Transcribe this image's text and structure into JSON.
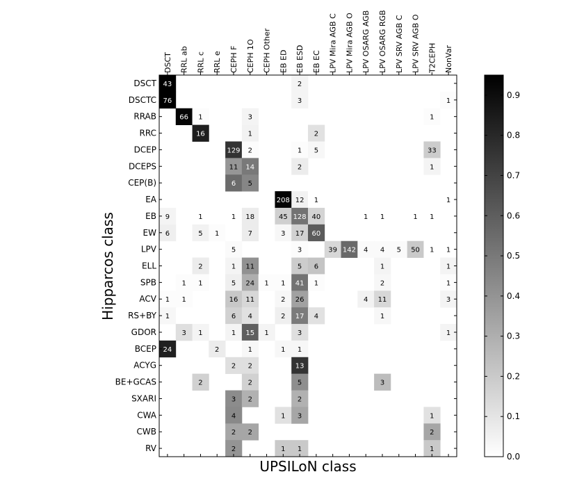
{
  "chart_data": {
    "type": "heatmap",
    "title": "",
    "xlabel": "UPSILoN class",
    "ylabel": "Hipparcos class",
    "x_categories": [
      "DSCT",
      "RRL ab",
      "RRL c",
      "RRL e",
      "CEPH F",
      "CEPH 1O",
      "CEPH Other",
      "EB ED",
      "EB ESD",
      "EB EC",
      "LPV Mira AGB C",
      "LPV Mira AGB O",
      "LPV OSARG AGB",
      "LPV OSARG RGB",
      "LPV SRV AGB C",
      "LPV SRV AGB O",
      "T2CEPH",
      "NonVar"
    ],
    "y_categories": [
      "DSCT",
      "DSCTC",
      "RRAB",
      "RRC",
      "DCEP",
      "DCEPS",
      "CEP(B)",
      "EA",
      "EB",
      "EW",
      "LPV",
      "ELL",
      "SPB",
      "ACV",
      "RS+BY",
      "GDOR",
      "BCEP",
      "ACYG",
      "BE+GCAS",
      "SXARI",
      "CWA",
      "CWB",
      "RV"
    ],
    "colorbar": {
      "range": [
        0.0,
        0.95
      ],
      "ticks": [
        "0.0",
        "0.1",
        "0.2",
        "0.3",
        "0.4",
        "0.5",
        "0.6",
        "0.7",
        "0.8",
        "0.9"
      ],
      "colormap": "gray_r"
    },
    "cells": [
      {
        "row": "DSCT",
        "col": "DSCT",
        "count": 43,
        "fraction": 0.96
      },
      {
        "row": "DSCT",
        "col": "EB ESD",
        "count": 2,
        "fraction": 0.04
      },
      {
        "row": "DSCTC",
        "col": "DSCT",
        "count": 76,
        "fraction": 0.95
      },
      {
        "row": "DSCTC",
        "col": "EB ESD",
        "count": 3,
        "fraction": 0.04
      },
      {
        "row": "DSCTC",
        "col": "NonVar",
        "count": 1,
        "fraction": 0.01
      },
      {
        "row": "RRAB",
        "col": "RRL ab",
        "count": 66,
        "fraction": 0.93
      },
      {
        "row": "RRAB",
        "col": "RRL c",
        "count": 1,
        "fraction": 0.01
      },
      {
        "row": "RRAB",
        "col": "CEPH 1O",
        "count": 3,
        "fraction": 0.04
      },
      {
        "row": "RRAB",
        "col": "T2CEPH",
        "count": 1,
        "fraction": 0.01
      },
      {
        "row": "RRC",
        "col": "RRL c",
        "count": 16,
        "fraction": 0.84
      },
      {
        "row": "RRC",
        "col": "CEPH 1O",
        "count": 1,
        "fraction": 0.05
      },
      {
        "row": "RRC",
        "col": "EB EC",
        "count": 2,
        "fraction": 0.11
      },
      {
        "row": "DCEP",
        "col": "CEPH F",
        "count": 129,
        "fraction": 0.76
      },
      {
        "row": "DCEP",
        "col": "CEPH 1O",
        "count": 2,
        "fraction": 0.01
      },
      {
        "row": "DCEP",
        "col": "EB ESD",
        "count": 1,
        "fraction": 0.01
      },
      {
        "row": "DCEP",
        "col": "EB EC",
        "count": 5,
        "fraction": 0.03
      },
      {
        "row": "DCEP",
        "col": "T2CEPH",
        "count": 33,
        "fraction": 0.19
      },
      {
        "row": "DCEPS",
        "col": "CEPH F",
        "count": 11,
        "fraction": 0.39
      },
      {
        "row": "DCEPS",
        "col": "CEPH 1O",
        "count": 14,
        "fraction": 0.5
      },
      {
        "row": "DCEPS",
        "col": "EB ESD",
        "count": 2,
        "fraction": 0.07
      },
      {
        "row": "DCEPS",
        "col": "T2CEPH",
        "count": 1,
        "fraction": 0.04
      },
      {
        "row": "CEP(B)",
        "col": "CEPH F",
        "count": 6,
        "fraction": 0.55
      },
      {
        "row": "CEP(B)",
        "col": "CEPH 1O",
        "count": 5,
        "fraction": 0.45
      },
      {
        "row": "EA",
        "col": "EB ED",
        "count": 208,
        "fraction": 0.94
      },
      {
        "row": "EA",
        "col": "EB ESD",
        "count": 12,
        "fraction": 0.05
      },
      {
        "row": "EA",
        "col": "EB EC",
        "count": 1,
        "fraction": 0.0
      },
      {
        "row": "EA",
        "col": "NonVar",
        "count": 1,
        "fraction": 0.0
      },
      {
        "row": "EB",
        "col": "DSCT",
        "count": 9,
        "fraction": 0.04
      },
      {
        "row": "EB",
        "col": "RRL c",
        "count": 1,
        "fraction": 0.0
      },
      {
        "row": "EB",
        "col": "CEPH F",
        "count": 1,
        "fraction": 0.0
      },
      {
        "row": "EB",
        "col": "CEPH 1O",
        "count": 18,
        "fraction": 0.07
      },
      {
        "row": "EB",
        "col": "EB ED",
        "count": 45,
        "fraction": 0.18
      },
      {
        "row": "EB",
        "col": "EB ESD",
        "count": 128,
        "fraction": 0.52
      },
      {
        "row": "EB",
        "col": "EB EC",
        "count": 40,
        "fraction": 0.16
      },
      {
        "row": "EB",
        "col": "LPV OSARG AGB",
        "count": 1,
        "fraction": 0.0
      },
      {
        "row": "EB",
        "col": "LPV OSARG RGB",
        "count": 1,
        "fraction": 0.0
      },
      {
        "row": "EB",
        "col": "LPV SRV AGB O",
        "count": 1,
        "fraction": 0.0
      },
      {
        "row": "EB",
        "col": "T2CEPH",
        "count": 1,
        "fraction": 0.0
      },
      {
        "row": "EW",
        "col": "DSCT",
        "count": 6,
        "fraction": 0.06
      },
      {
        "row": "EW",
        "col": "RRL c",
        "count": 5,
        "fraction": 0.05
      },
      {
        "row": "EW",
        "col": "RRL e",
        "count": 1,
        "fraction": 0.01
      },
      {
        "row": "EW",
        "col": "CEPH 1O",
        "count": 7,
        "fraction": 0.07
      },
      {
        "row": "EW",
        "col": "EB ED",
        "count": 3,
        "fraction": 0.03
      },
      {
        "row": "EW",
        "col": "EB ESD",
        "count": 17,
        "fraction": 0.17
      },
      {
        "row": "EW",
        "col": "EB EC",
        "count": 60,
        "fraction": 0.61
      },
      {
        "row": "LPV",
        "col": "CEPH F",
        "count": 5,
        "fraction": 0.02
      },
      {
        "row": "LPV",
        "col": "EB ESD",
        "count": 3,
        "fraction": 0.01
      },
      {
        "row": "LPV",
        "col": "LPV Mira AGB C",
        "count": 39,
        "fraction": 0.15
      },
      {
        "row": "LPV",
        "col": "LPV Mira AGB O",
        "count": 142,
        "fraction": 0.56
      },
      {
        "row": "LPV",
        "col": "LPV OSARG AGB",
        "count": 4,
        "fraction": 0.02
      },
      {
        "row": "LPV",
        "col": "LPV OSARG RGB",
        "count": 4,
        "fraction": 0.02
      },
      {
        "row": "LPV",
        "col": "LPV SRV AGB C",
        "count": 5,
        "fraction": 0.02
      },
      {
        "row": "LPV",
        "col": "LPV SRV AGB O",
        "count": 50,
        "fraction": 0.2
      },
      {
        "row": "LPV",
        "col": "T2CEPH",
        "count": 1,
        "fraction": 0.0
      },
      {
        "row": "LPV",
        "col": "NonVar",
        "count": 1,
        "fraction": 0.0
      },
      {
        "row": "ELL",
        "col": "RRL c",
        "count": 2,
        "fraction": 0.07
      },
      {
        "row": "ELL",
        "col": "CEPH F",
        "count": 1,
        "fraction": 0.04
      },
      {
        "row": "ELL",
        "col": "CEPH 1O",
        "count": 11,
        "fraction": 0.41
      },
      {
        "row": "ELL",
        "col": "EB ESD",
        "count": 5,
        "fraction": 0.19
      },
      {
        "row": "ELL",
        "col": "EB EC",
        "count": 6,
        "fraction": 0.22
      },
      {
        "row": "ELL",
        "col": "LPV OSARG RGB",
        "count": 1,
        "fraction": 0.04
      },
      {
        "row": "ELL",
        "col": "NonVar",
        "count": 1,
        "fraction": 0.04
      },
      {
        "row": "SPB",
        "col": "RRL ab",
        "count": 1,
        "fraction": 0.01
      },
      {
        "row": "SPB",
        "col": "RRL c",
        "count": 1,
        "fraction": 0.01
      },
      {
        "row": "SPB",
        "col": "CEPH F",
        "count": 5,
        "fraction": 0.06
      },
      {
        "row": "SPB",
        "col": "CEPH 1O",
        "count": 24,
        "fraction": 0.3
      },
      {
        "row": "SPB",
        "col": "CEPH Other",
        "count": 1,
        "fraction": 0.01
      },
      {
        "row": "SPB",
        "col": "EB ED",
        "count": 1,
        "fraction": 0.01
      },
      {
        "row": "SPB",
        "col": "EB ESD",
        "count": 41,
        "fraction": 0.52
      },
      {
        "row": "SPB",
        "col": "EB EC",
        "count": 1,
        "fraction": 0.01
      },
      {
        "row": "SPB",
        "col": "LPV OSARG RGB",
        "count": 2,
        "fraction": 0.03
      },
      {
        "row": "SPB",
        "col": "NonVar",
        "count": 1,
        "fraction": 0.01
      },
      {
        "row": "ACV",
        "col": "DSCT",
        "count": 1,
        "fraction": 0.01
      },
      {
        "row": "ACV",
        "col": "RRL ab",
        "count": 1,
        "fraction": 0.01
      },
      {
        "row": "ACV",
        "col": "CEPH F",
        "count": 16,
        "fraction": 0.21
      },
      {
        "row": "ACV",
        "col": "CEPH 1O",
        "count": 11,
        "fraction": 0.15
      },
      {
        "row": "ACV",
        "col": "EB ED",
        "count": 2,
        "fraction": 0.03
      },
      {
        "row": "ACV",
        "col": "EB ESD",
        "count": 26,
        "fraction": 0.35
      },
      {
        "row": "ACV",
        "col": "LPV OSARG AGB",
        "count": 4,
        "fraction": 0.05
      },
      {
        "row": "ACV",
        "col": "LPV OSARG RGB",
        "count": 11,
        "fraction": 0.15
      },
      {
        "row": "ACV",
        "col": "NonVar",
        "count": 3,
        "fraction": 0.04
      },
      {
        "row": "RS+BY",
        "col": "DSCT",
        "count": 1,
        "fraction": 0.03
      },
      {
        "row": "RS+BY",
        "col": "CEPH F",
        "count": 6,
        "fraction": 0.17
      },
      {
        "row": "RS+BY",
        "col": "CEPH 1O",
        "count": 4,
        "fraction": 0.11
      },
      {
        "row": "RS+BY",
        "col": "EB ED",
        "count": 2,
        "fraction": 0.06
      },
      {
        "row": "RS+BY",
        "col": "EB ESD",
        "count": 17,
        "fraction": 0.49
      },
      {
        "row": "RS+BY",
        "col": "EB EC",
        "count": 4,
        "fraction": 0.11
      },
      {
        "row": "RS+BY",
        "col": "LPV OSARG RGB",
        "count": 1,
        "fraction": 0.03
      },
      {
        "row": "GDOR",
        "col": "RRL ab",
        "count": 3,
        "fraction": 0.12
      },
      {
        "row": "GDOR",
        "col": "RRL c",
        "count": 1,
        "fraction": 0.04
      },
      {
        "row": "GDOR",
        "col": "CEPH F",
        "count": 1,
        "fraction": 0.04
      },
      {
        "row": "GDOR",
        "col": "CEPH 1O",
        "count": 15,
        "fraction": 0.6
      },
      {
        "row": "GDOR",
        "col": "CEPH Other",
        "count": 1,
        "fraction": 0.04
      },
      {
        "row": "GDOR",
        "col": "EB ESD",
        "count": 3,
        "fraction": 0.12
      },
      {
        "row": "GDOR",
        "col": "NonVar",
        "count": 1,
        "fraction": 0.04
      },
      {
        "row": "BCEP",
        "col": "DSCT",
        "count": 24,
        "fraction": 0.83
      },
      {
        "row": "BCEP",
        "col": "RRL e",
        "count": 2,
        "fraction": 0.07
      },
      {
        "row": "BCEP",
        "col": "CEPH 1O",
        "count": 1,
        "fraction": 0.03
      },
      {
        "row": "BCEP",
        "col": "EB ED",
        "count": 1,
        "fraction": 0.03
      },
      {
        "row": "BCEP",
        "col": "EB ESD",
        "count": 1,
        "fraction": 0.03
      },
      {
        "row": "ACYG",
        "col": "CEPH F",
        "count": 2,
        "fraction": 0.12
      },
      {
        "row": "ACYG",
        "col": "CEPH 1O",
        "count": 2,
        "fraction": 0.12
      },
      {
        "row": "ACYG",
        "col": "EB ESD",
        "count": 13,
        "fraction": 0.76
      },
      {
        "row": "BE+GCAS",
        "col": "RRL c",
        "count": 2,
        "fraction": 0.17
      },
      {
        "row": "BE+GCAS",
        "col": "CEPH 1O",
        "count": 2,
        "fraction": 0.17
      },
      {
        "row": "BE+GCAS",
        "col": "EB ESD",
        "count": 5,
        "fraction": 0.42
      },
      {
        "row": "BE+GCAS",
        "col": "LPV OSARG RGB",
        "count": 3,
        "fraction": 0.25
      },
      {
        "row": "SXARI",
        "col": "CEPH F",
        "count": 3,
        "fraction": 0.43
      },
      {
        "row": "SXARI",
        "col": "CEPH 1O",
        "count": 2,
        "fraction": 0.29
      },
      {
        "row": "SXARI",
        "col": "EB ESD",
        "count": 2,
        "fraction": 0.29
      },
      {
        "row": "CWA",
        "col": "CEPH F",
        "count": 4,
        "fraction": 0.44
      },
      {
        "row": "CWA",
        "col": "EB ED",
        "count": 1,
        "fraction": 0.11
      },
      {
        "row": "CWA",
        "col": "EB ESD",
        "count": 3,
        "fraction": 0.33
      },
      {
        "row": "CWA",
        "col": "T2CEPH",
        "count": 1,
        "fraction": 0.11
      },
      {
        "row": "CWB",
        "col": "CEPH F",
        "count": 2,
        "fraction": 0.33
      },
      {
        "row": "CWB",
        "col": "CEPH 1O",
        "count": 2,
        "fraction": 0.33
      },
      {
        "row": "CWB",
        "col": "T2CEPH",
        "count": 2,
        "fraction": 0.33
      },
      {
        "row": "RV",
        "col": "CEPH F",
        "count": 2,
        "fraction": 0.4
      },
      {
        "row": "RV",
        "col": "EB ED",
        "count": 1,
        "fraction": 0.2
      },
      {
        "row": "RV",
        "col": "EB ESD",
        "count": 1,
        "fraction": 0.2
      },
      {
        "row": "RV",
        "col": "T2CEPH",
        "count": 1,
        "fraction": 0.2
      }
    ]
  }
}
